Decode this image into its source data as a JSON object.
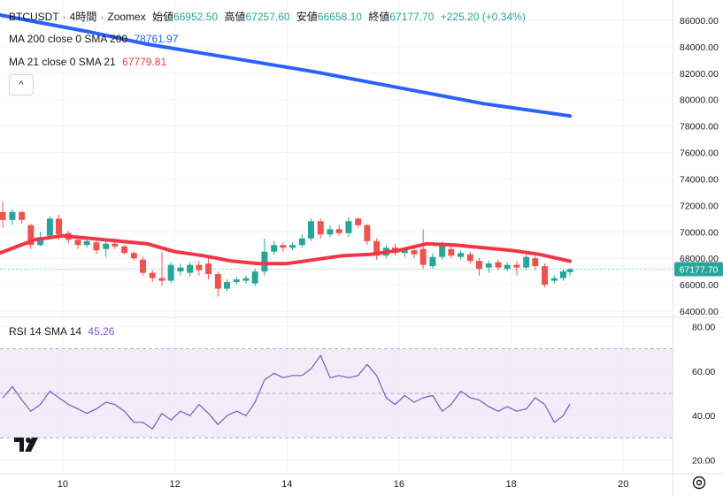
{
  "header": {
    "symbol": "BTCUSDT",
    "dot": "·",
    "interval": "4時間",
    "exchange": "Zoomex",
    "open_label": "始値",
    "open": "66952.50",
    "high_label": "高値",
    "high": "67257.60",
    "low_label": "安値",
    "low": "66658.10",
    "close_label": "終値",
    "close": "67177.70",
    "change": "+225.20 (+0.34%)"
  },
  "indicators": {
    "ma200_label": "MA 200 close 0 SMA 200",
    "ma200_value": "78761.97",
    "ma21_label": "MA 21 close 0 SMA 21",
    "ma21_value": "67779.81",
    "rsi_label": "RSI 14 SMA 14",
    "rsi_value": "45.26",
    "collapse_glyph": "^"
  },
  "colors": {
    "up": "#26a69a",
    "down": "#ef5350",
    "ma200": "#2962ff",
    "ma21": "#f23645",
    "rsi": "#7e57c2",
    "rsi_band": "#ede7f6",
    "price_tag": "#26a69a"
  },
  "chart_data": [
    {
      "type": "candlestick",
      "title": "BTCUSDT · 4時間 · Zoomex",
      "x_ticks": [
        {
          "x": 10,
          "label": "10"
        },
        {
          "x": 12,
          "label": "12"
        },
        {
          "x": 14,
          "label": "14"
        },
        {
          "x": 16,
          "label": "16"
        },
        {
          "x": 18,
          "label": "18"
        },
        {
          "x": 20,
          "label": "20"
        }
      ],
      "xlim": [
        8.88,
        20.88
      ],
      "ylim": [
        63800,
        87000
      ],
      "y_ticks": [
        "64000.00",
        "66000.00",
        "68000.00",
        "70000.00",
        "72000.00",
        "74000.00",
        "76000.00",
        "78000.00",
        "80000.00",
        "82000.00",
        "84000.00",
        "86000.00"
      ],
      "last_price": "67177.70",
      "candles": [
        {
          "x": 8.93,
          "o": 71500,
          "c": 70900,
          "h": 72300,
          "l": 70300
        },
        {
          "x": 9.1,
          "o": 70900,
          "c": 71500,
          "h": 71700,
          "l": 70500
        },
        {
          "x": 9.27,
          "o": 71500,
          "c": 70900,
          "h": 71600,
          "l": 70600
        },
        {
          "x": 9.43,
          "o": 70500,
          "c": 69000,
          "h": 70600,
          "l": 68700
        },
        {
          "x": 9.6,
          "o": 69000,
          "c": 69600,
          "h": 70000,
          "l": 68900
        },
        {
          "x": 9.77,
          "o": 69700,
          "c": 71000,
          "h": 71200,
          "l": 69500
        },
        {
          "x": 9.93,
          "o": 71000,
          "c": 69800,
          "h": 71300,
          "l": 69400
        },
        {
          "x": 10.1,
          "o": 69900,
          "c": 69400,
          "h": 70100,
          "l": 69100
        },
        {
          "x": 10.27,
          "o": 69400,
          "c": 69000,
          "h": 69600,
          "l": 68700
        },
        {
          "x": 10.43,
          "o": 69000,
          "c": 69300,
          "h": 69500,
          "l": 68800
        },
        {
          "x": 10.6,
          "o": 69200,
          "c": 68600,
          "h": 69300,
          "l": 68300
        },
        {
          "x": 10.77,
          "o": 68700,
          "c": 69100,
          "h": 69300,
          "l": 68100
        },
        {
          "x": 10.93,
          "o": 69100,
          "c": 68900,
          "h": 69500,
          "l": 68700
        },
        {
          "x": 11.1,
          "o": 68900,
          "c": 68400,
          "h": 69000,
          "l": 68300
        },
        {
          "x": 11.27,
          "o": 68400,
          "c": 68000,
          "h": 68500,
          "l": 67800
        },
        {
          "x": 11.43,
          "o": 67900,
          "c": 66900,
          "h": 68100,
          "l": 66700
        },
        {
          "x": 11.6,
          "o": 66900,
          "c": 66500,
          "h": 67100,
          "l": 66200
        },
        {
          "x": 11.77,
          "o": 66500,
          "c": 66300,
          "h": 68500,
          "l": 65900
        },
        {
          "x": 11.93,
          "o": 66300,
          "c": 67500,
          "h": 67700,
          "l": 66100
        },
        {
          "x": 12.1,
          "o": 67000,
          "c": 67300,
          "h": 67600,
          "l": 66700
        },
        {
          "x": 12.27,
          "o": 66900,
          "c": 67500,
          "h": 67700,
          "l": 66600
        },
        {
          "x": 12.43,
          "o": 67500,
          "c": 67100,
          "h": 67800,
          "l": 66700
        },
        {
          "x": 12.6,
          "o": 67600,
          "c": 66800,
          "h": 68000,
          "l": 66400
        },
        {
          "x": 12.77,
          "o": 66800,
          "c": 65700,
          "h": 67000,
          "l": 65100
        },
        {
          "x": 12.93,
          "o": 65700,
          "c": 66200,
          "h": 66400,
          "l": 65500
        },
        {
          "x": 13.1,
          "o": 66200,
          "c": 66400,
          "h": 66600,
          "l": 66000
        },
        {
          "x": 13.27,
          "o": 66300,
          "c": 66500,
          "h": 66700,
          "l": 66100
        },
        {
          "x": 13.43,
          "o": 66100,
          "c": 67000,
          "h": 67200,
          "l": 65900
        },
        {
          "x": 13.6,
          "o": 67000,
          "c": 68500,
          "h": 69500,
          "l": 66700
        },
        {
          "x": 13.77,
          "o": 68500,
          "c": 69000,
          "h": 69300,
          "l": 68300
        },
        {
          "x": 13.93,
          "o": 69000,
          "c": 68800,
          "h": 69200,
          "l": 68500
        },
        {
          "x": 14.1,
          "o": 68800,
          "c": 69000,
          "h": 69200,
          "l": 68600
        },
        {
          "x": 14.27,
          "o": 69000,
          "c": 69500,
          "h": 69800,
          "l": 68800
        },
        {
          "x": 14.43,
          "o": 69500,
          "c": 70800,
          "h": 71000,
          "l": 69300
        },
        {
          "x": 14.6,
          "o": 70800,
          "c": 69800,
          "h": 71000,
          "l": 69500
        },
        {
          "x": 14.77,
          "o": 69800,
          "c": 70200,
          "h": 70500,
          "l": 69600
        },
        {
          "x": 14.93,
          "o": 70200,
          "c": 69900,
          "h": 70500,
          "l": 69700
        },
        {
          "x": 15.1,
          "o": 69900,
          "c": 70800,
          "h": 71100,
          "l": 69600
        },
        {
          "x": 15.27,
          "o": 71000,
          "c": 70500,
          "h": 71100,
          "l": 70300
        },
        {
          "x": 15.43,
          "o": 70500,
          "c": 69300,
          "h": 70600,
          "l": 69000
        },
        {
          "x": 15.6,
          "o": 69300,
          "c": 68200,
          "h": 69500,
          "l": 67900
        },
        {
          "x": 15.77,
          "o": 68200,
          "c": 68800,
          "h": 69000,
          "l": 68000
        },
        {
          "x": 15.93,
          "o": 68800,
          "c": 68400,
          "h": 69100,
          "l": 68200
        },
        {
          "x": 16.1,
          "o": 68400,
          "c": 68600,
          "h": 68800,
          "l": 68100
        },
        {
          "x": 16.27,
          "o": 68600,
          "c": 68300,
          "h": 68800,
          "l": 68000
        },
        {
          "x": 16.43,
          "o": 68700,
          "c": 67500,
          "h": 70200,
          "l": 67200
        },
        {
          "x": 16.6,
          "o": 67400,
          "c": 68100,
          "h": 68400,
          "l": 67200
        },
        {
          "x": 16.77,
          "o": 68100,
          "c": 69000,
          "h": 69300,
          "l": 67900
        },
        {
          "x": 16.93,
          "o": 68700,
          "c": 68200,
          "h": 68900,
          "l": 68000
        },
        {
          "x": 17.1,
          "o": 68100,
          "c": 68400,
          "h": 68600,
          "l": 67900
        },
        {
          "x": 17.27,
          "o": 68300,
          "c": 67800,
          "h": 68500,
          "l": 67600
        },
        {
          "x": 17.43,
          "o": 67800,
          "c": 67200,
          "h": 68000,
          "l": 66700
        },
        {
          "x": 17.6,
          "o": 67300,
          "c": 67600,
          "h": 67800,
          "l": 66900
        },
        {
          "x": 17.77,
          "o": 67700,
          "c": 67300,
          "h": 67900,
          "l": 67100
        },
        {
          "x": 17.93,
          "o": 67200,
          "c": 67500,
          "h": 67700,
          "l": 67000
        },
        {
          "x": 18.1,
          "o": 67500,
          "c": 67300,
          "h": 67800,
          "l": 66700
        },
        {
          "x": 18.27,
          "o": 67300,
          "c": 68100,
          "h": 68300,
          "l": 67100
        },
        {
          "x": 18.43,
          "o": 68000,
          "c": 67400,
          "h": 68200,
          "l": 67100
        },
        {
          "x": 18.6,
          "o": 67400,
          "c": 66000,
          "h": 67600,
          "l": 65800
        },
        {
          "x": 18.77,
          "o": 66300,
          "c": 66500,
          "h": 66700,
          "l": 66100
        },
        {
          "x": 18.93,
          "o": 66500,
          "c": 67000,
          "h": 67200,
          "l": 66300
        },
        {
          "x": 19.05,
          "o": 66950,
          "c": 67178,
          "h": 67258,
          "l": 66658
        }
      ],
      "ma200": {
        "name": "MA 200",
        "x": [
          8.88,
          9.5,
          10.5,
          11.5,
          12.5,
          13.5,
          14.5,
          15.5,
          16.5,
          17.5,
          18.5,
          19.05
        ],
        "y": [
          86400,
          85900,
          85100,
          84200,
          83500,
          82800,
          82100,
          81300,
          80500,
          79700,
          79100,
          78762
        ]
      },
      "ma21": {
        "name": "MA 21",
        "x": [
          8.88,
          9.5,
          10.0,
          10.5,
          11.0,
          11.5,
          12.0,
          12.5,
          13.0,
          13.5,
          14.0,
          14.5,
          15.0,
          15.5,
          16.0,
          16.5,
          17.0,
          17.5,
          18.0,
          18.5,
          19.05
        ],
        "y": [
          68400,
          69400,
          69700,
          69500,
          69300,
          69100,
          68500,
          68200,
          67800,
          67600,
          67600,
          67900,
          68200,
          68300,
          68600,
          69100,
          69000,
          68800,
          68600,
          68300,
          67780
        ]
      }
    },
    {
      "type": "line",
      "title": "RSI 14 SMA 14",
      "x": [
        8.93,
        9.1,
        9.27,
        9.43,
        9.6,
        9.77,
        9.93,
        10.1,
        10.27,
        10.43,
        10.6,
        10.77,
        10.93,
        11.1,
        11.27,
        11.43,
        11.6,
        11.77,
        11.93,
        12.1,
        12.27,
        12.43,
        12.6,
        12.77,
        12.93,
        13.1,
        13.27,
        13.43,
        13.6,
        13.77,
        13.93,
        14.1,
        14.27,
        14.43,
        14.6,
        14.77,
        14.93,
        15.1,
        15.27,
        15.43,
        15.6,
        15.77,
        15.93,
        16.1,
        16.27,
        16.43,
        16.6,
        16.77,
        16.93,
        17.1,
        17.27,
        17.43,
        17.6,
        17.77,
        17.93,
        18.1,
        18.27,
        18.43,
        18.6,
        18.77,
        18.93,
        19.05
      ],
      "values": [
        48,
        53,
        47,
        42,
        45,
        51,
        48,
        45,
        43,
        41,
        43,
        46,
        45,
        42,
        37,
        37,
        34,
        41,
        38,
        42,
        40,
        45,
        41,
        36,
        40,
        42,
        40,
        46,
        56,
        59,
        57,
        58,
        58,
        61,
        67,
        57,
        58,
        57,
        58,
        63,
        58,
        48,
        45,
        49,
        46,
        48,
        49,
        42,
        45,
        51,
        48,
        47,
        44,
        42,
        44,
        42,
        43,
        48,
        45,
        37,
        40,
        45.26
      ],
      "ylim": [
        15.5,
        82.5
      ],
      "y_ticks": [
        "20.00",
        "40.00",
        "60.00",
        "80.00"
      ],
      "band": [
        30,
        70
      ],
      "midline": 50
    }
  ]
}
